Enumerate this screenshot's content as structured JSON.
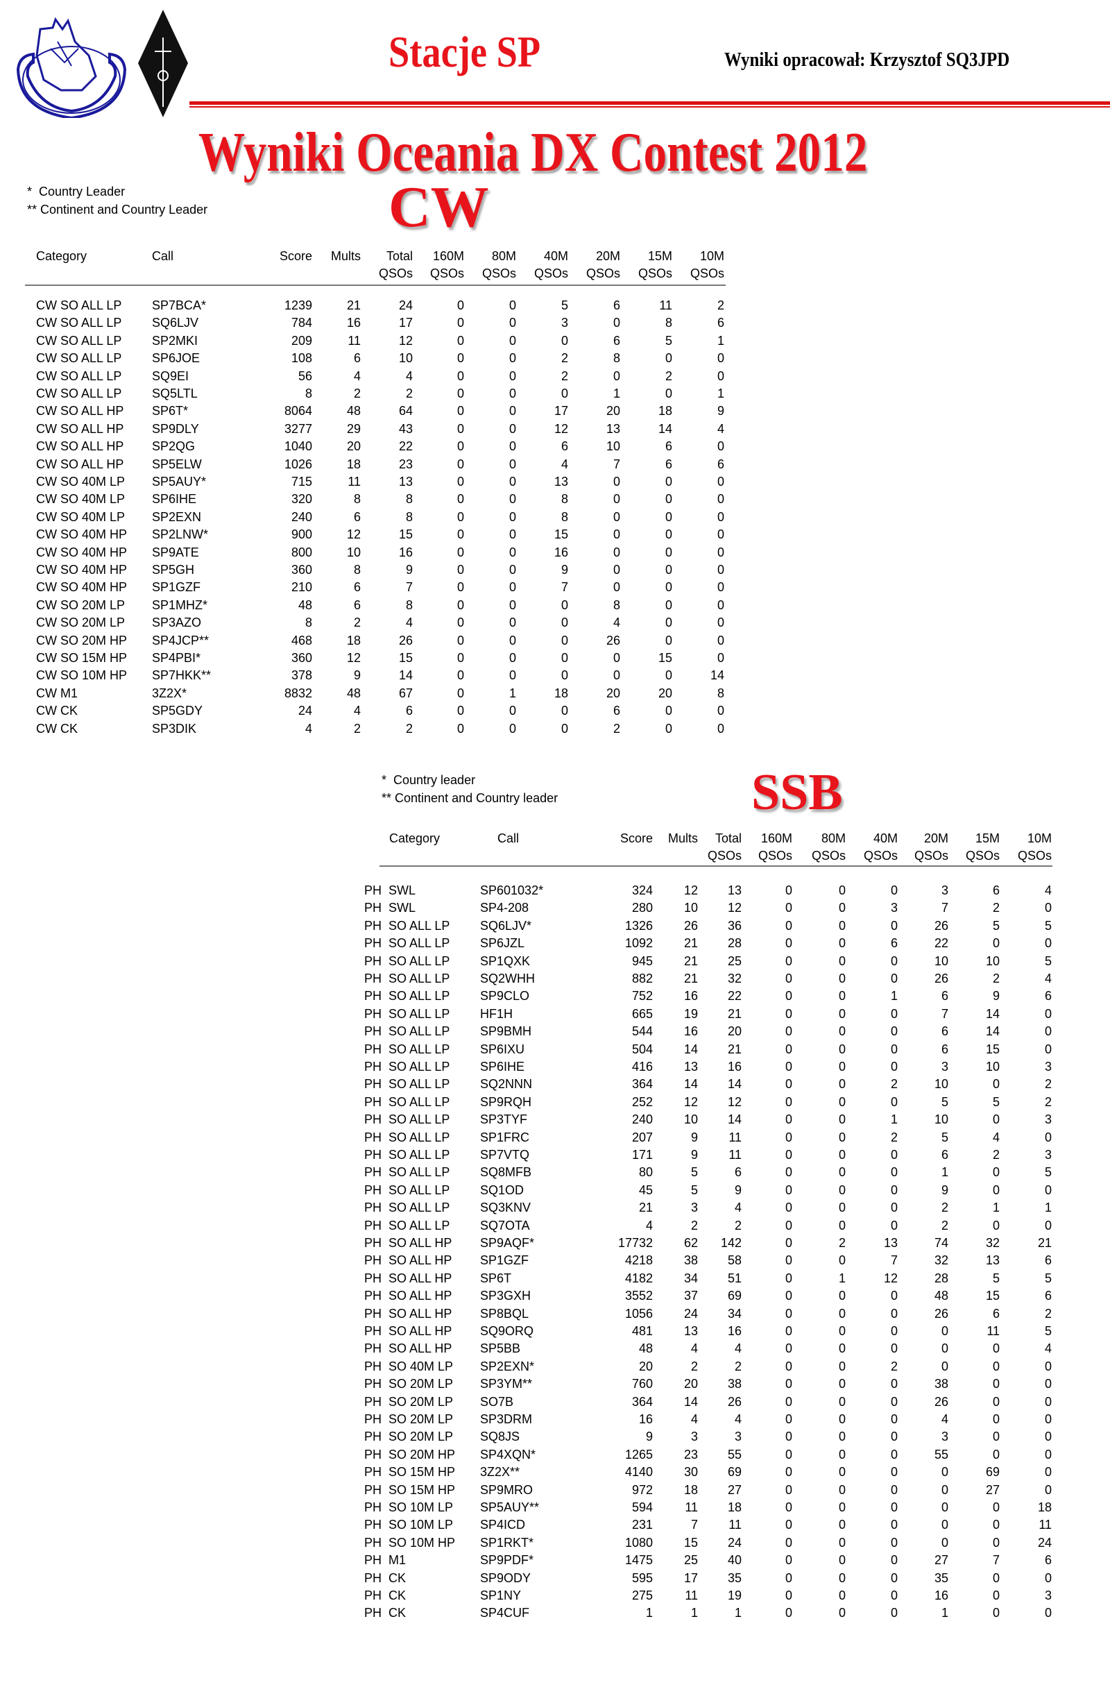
{
  "header": {
    "subtitle": "Stacje SP",
    "author": "Wyniki opracował: Krzysztof SQ3JPD",
    "title": "Wyniki Oceania DX Contest 2012",
    "colors": {
      "title_red": "#e8141b",
      "logo_blue": "#1a1a9c"
    }
  },
  "cw": {
    "heading": "CW",
    "legend": [
      "*  Country Leader",
      "** Continent and Country Leader"
    ],
    "columns": [
      {
        "top": "Category",
        "bottom": ""
      },
      {
        "top": "Call",
        "bottom": ""
      },
      {
        "top": "Score",
        "bottom": ""
      },
      {
        "top": "Mults",
        "bottom": ""
      },
      {
        "top": "Total",
        "bottom": "QSOs"
      },
      {
        "top": "160M",
        "bottom": "QSOs"
      },
      {
        "top": "80M",
        "bottom": "QSOs"
      },
      {
        "top": "40M",
        "bottom": "QSOs"
      },
      {
        "top": "20M",
        "bottom": "QSOs"
      },
      {
        "top": "15M",
        "bottom": "QSOs"
      },
      {
        "top": "10M",
        "bottom": "QSOs"
      }
    ],
    "rows": [
      [
        "CW SO ALL LP",
        "SP7BCA*",
        "1239",
        "21",
        "24",
        "0",
        "0",
        "5",
        "6",
        "11",
        "2"
      ],
      [
        "CW SO ALL LP",
        "SQ6LJV",
        "784",
        "16",
        "17",
        "0",
        "0",
        "3",
        "0",
        "8",
        "6"
      ],
      [
        "CW SO ALL LP",
        "SP2MKI",
        "209",
        "11",
        "12",
        "0",
        "0",
        "0",
        "6",
        "5",
        "1"
      ],
      [
        "CW SO ALL LP",
        "SP6JOE",
        "108",
        "6",
        "10",
        "0",
        "0",
        "2",
        "8",
        "0",
        "0"
      ],
      [
        "CW SO ALL LP",
        "SQ9EI",
        "56",
        "4",
        "4",
        "0",
        "0",
        "2",
        "0",
        "2",
        "0"
      ],
      [
        "CW SO ALL LP",
        "SQ5LTL",
        "8",
        "2",
        "2",
        "0",
        "0",
        "0",
        "1",
        "0",
        "1"
      ],
      [
        "CW SO ALL HP",
        "SP6T*",
        "8064",
        "48",
        "64",
        "0",
        "0",
        "17",
        "20",
        "18",
        "9"
      ],
      [
        "CW SO ALL HP",
        "SP9DLY",
        "3277",
        "29",
        "43",
        "0",
        "0",
        "12",
        "13",
        "14",
        "4"
      ],
      [
        "CW SO ALL HP",
        "SP2QG",
        "1040",
        "20",
        "22",
        "0",
        "0",
        "6",
        "10",
        "6",
        "0"
      ],
      [
        "CW SO ALL HP",
        "SP5ELW",
        "1026",
        "18",
        "23",
        "0",
        "0",
        "4",
        "7",
        "6",
        "6"
      ],
      [
        "CW SO 40M LP",
        "SP5AUY*",
        "715",
        "11",
        "13",
        "0",
        "0",
        "13",
        "0",
        "0",
        "0"
      ],
      [
        "CW SO 40M LP",
        "SP6IHE",
        "320",
        "8",
        "8",
        "0",
        "0",
        "8",
        "0",
        "0",
        "0"
      ],
      [
        "CW SO 40M LP",
        "SP2EXN",
        "240",
        "6",
        "8",
        "0",
        "0",
        "8",
        "0",
        "0",
        "0"
      ],
      [
        "CW SO 40M HP",
        "SP2LNW*",
        "900",
        "12",
        "15",
        "0",
        "0",
        "15",
        "0",
        "0",
        "0"
      ],
      [
        "CW SO 40M HP",
        "SP9ATE",
        "800",
        "10",
        "16",
        "0",
        "0",
        "16",
        "0",
        "0",
        "0"
      ],
      [
        "CW SO 40M HP",
        "SP5GH",
        "360",
        "8",
        "9",
        "0",
        "0",
        "9",
        "0",
        "0",
        "0"
      ],
      [
        "CW SO 40M HP",
        "SP1GZF",
        "210",
        "6",
        "7",
        "0",
        "0",
        "7",
        "0",
        "0",
        "0"
      ],
      [
        "CW SO 20M LP",
        "SP1MHZ*",
        "48",
        "6",
        "8",
        "0",
        "0",
        "0",
        "8",
        "0",
        "0"
      ],
      [
        "CW SO 20M LP",
        "SP3AZO",
        "8",
        "2",
        "4",
        "0",
        "0",
        "0",
        "4",
        "0",
        "0"
      ],
      [
        "CW SO 20M HP",
        "SP4JCP**",
        "468",
        "18",
        "26",
        "0",
        "0",
        "0",
        "26",
        "0",
        "0"
      ],
      [
        "CW SO 15M HP",
        "SP4PBI*",
        "360",
        "12",
        "15",
        "0",
        "0",
        "0",
        "0",
        "15",
        "0"
      ],
      [
        "CW SO 10M HP",
        "SP7HKK**",
        "378",
        "9",
        "14",
        "0",
        "0",
        "0",
        "0",
        "0",
        "14"
      ],
      [
        "CW M1",
        "3Z2X*",
        "8832",
        "48",
        "67",
        "0",
        "1",
        "18",
        "20",
        "20",
        "8"
      ],
      [
        "CW CK",
        "SP5GDY",
        "24",
        "4",
        "6",
        "0",
        "0",
        "0",
        "6",
        "0",
        "0"
      ],
      [
        "CW CK",
        "SP3DIK",
        "4",
        "2",
        "2",
        "0",
        "0",
        "0",
        "2",
        "0",
        "0"
      ]
    ]
  },
  "ssb": {
    "heading": "SSB",
    "legend": [
      "*  Country leader",
      "** Continent and Country leader"
    ],
    "columns": [
      {
        "top": "Category",
        "bottom": ""
      },
      {
        "top": "Call",
        "bottom": ""
      },
      {
        "top": "Score",
        "bottom": ""
      },
      {
        "top": "Mults",
        "bottom": ""
      },
      {
        "top": "Total",
        "bottom": "QSOs"
      },
      {
        "top": "160M",
        "bottom": "QSOs"
      },
      {
        "top": "80M",
        "bottom": "QSOs"
      },
      {
        "top": "40M",
        "bottom": "QSOs"
      },
      {
        "top": "20M",
        "bottom": "QSOs"
      },
      {
        "top": "15M",
        "bottom": "QSOs"
      },
      {
        "top": "10M",
        "bottom": "QSOs"
      }
    ],
    "rows": [
      [
        "PH  SWL",
        "SP601032*",
        "324",
        "12",
        "13",
        "0",
        "0",
        "0",
        "3",
        "6",
        "4"
      ],
      [
        "PH  SWL",
        "SP4-208",
        "280",
        "10",
        "12",
        "0",
        "0",
        "3",
        "7",
        "2",
        "0"
      ],
      [
        "PH  SO ALL LP",
        "SQ6LJV*",
        "1326",
        "26",
        "36",
        "0",
        "0",
        "0",
        "26",
        "5",
        "5"
      ],
      [
        "PH  SO ALL LP",
        "SP6JZL",
        "1092",
        "21",
        "28",
        "0",
        "0",
        "6",
        "22",
        "0",
        "0"
      ],
      [
        "PH  SO ALL LP",
        "SP1QXK",
        "945",
        "21",
        "25",
        "0",
        "0",
        "0",
        "10",
        "10",
        "5"
      ],
      [
        "PH  SO ALL LP",
        "SQ2WHH",
        "882",
        "21",
        "32",
        "0",
        "0",
        "0",
        "26",
        "2",
        "4"
      ],
      [
        "PH  SO ALL LP",
        "SP9CLO",
        "752",
        "16",
        "22",
        "0",
        "0",
        "1",
        "6",
        "9",
        "6"
      ],
      [
        "PH  SO ALL LP",
        "HF1H",
        "665",
        "19",
        "21",
        "0",
        "0",
        "0",
        "7",
        "14",
        "0"
      ],
      [
        "PH  SO ALL LP",
        "SP9BMH",
        "544",
        "16",
        "20",
        "0",
        "0",
        "0",
        "6",
        "14",
        "0"
      ],
      [
        "PH  SO ALL LP",
        "SP6IXU",
        "504",
        "14",
        "21",
        "0",
        "0",
        "0",
        "6",
        "15",
        "0"
      ],
      [
        "PH  SO ALL LP",
        "SP6IHE",
        "416",
        "13",
        "16",
        "0",
        "0",
        "0",
        "3",
        "10",
        "3"
      ],
      [
        "PH  SO ALL LP",
        "SQ2NNN",
        "364",
        "14",
        "14",
        "0",
        "0",
        "2",
        "10",
        "0",
        "2"
      ],
      [
        "PH  SO ALL LP",
        "SP9RQH",
        "252",
        "12",
        "12",
        "0",
        "0",
        "0",
        "5",
        "5",
        "2"
      ],
      [
        "PH  SO ALL LP",
        "SP3TYF",
        "240",
        "10",
        "14",
        "0",
        "0",
        "1",
        "10",
        "0",
        "3"
      ],
      [
        "PH  SO ALL LP",
        "SP1FRC",
        "207",
        "9",
        "11",
        "0",
        "0",
        "2",
        "5",
        "4",
        "0"
      ],
      [
        "PH  SO ALL LP",
        "SP7VTQ",
        "171",
        "9",
        "11",
        "0",
        "0",
        "0",
        "6",
        "2",
        "3"
      ],
      [
        "PH  SO ALL LP",
        "SQ8MFB",
        "80",
        "5",
        "6",
        "0",
        "0",
        "0",
        "1",
        "0",
        "5"
      ],
      [
        "PH  SO ALL LP",
        "SQ1OD",
        "45",
        "5",
        "9",
        "0",
        "0",
        "0",
        "9",
        "0",
        "0"
      ],
      [
        "PH  SO ALL LP",
        "SQ3KNV",
        "21",
        "3",
        "4",
        "0",
        "0",
        "0",
        "2",
        "1",
        "1"
      ],
      [
        "PH  SO ALL LP",
        "SQ7OTA",
        "4",
        "2",
        "2",
        "0",
        "0",
        "0",
        "2",
        "0",
        "0"
      ],
      [
        "PH  SO ALL HP",
        "SP9AQF*",
        "17732",
        "62",
        "142",
        "0",
        "2",
        "13",
        "74",
        "32",
        "21"
      ],
      [
        "PH  SO ALL HP",
        "SP1GZF",
        "4218",
        "38",
        "58",
        "0",
        "0",
        "7",
        "32",
        "13",
        "6"
      ],
      [
        "PH  SO ALL HP",
        "SP6T",
        "4182",
        "34",
        "51",
        "0",
        "1",
        "12",
        "28",
        "5",
        "5"
      ],
      [
        "PH  SO ALL HP",
        "SP3GXH",
        "3552",
        "37",
        "69",
        "0",
        "0",
        "0",
        "48",
        "15",
        "6"
      ],
      [
        "PH  SO ALL HP",
        "SP8BQL",
        "1056",
        "24",
        "34",
        "0",
        "0",
        "0",
        "26",
        "6",
        "2"
      ],
      [
        "PH  SO ALL HP",
        "SQ9ORQ",
        "481",
        "13",
        "16",
        "0",
        "0",
        "0",
        "0",
        "11",
        "5"
      ],
      [
        "PH  SO ALL HP",
        "SP5BB",
        "48",
        "4",
        "4",
        "0",
        "0",
        "0",
        "0",
        "0",
        "4"
      ],
      [
        "PH  SO 40M LP",
        "SP2EXN*",
        "20",
        "2",
        "2",
        "0",
        "0",
        "2",
        "0",
        "0",
        "0"
      ],
      [
        "PH  SO 20M LP",
        "SP3YM**",
        "760",
        "20",
        "38",
        "0",
        "0",
        "0",
        "38",
        "0",
        "0"
      ],
      [
        "PH  SO 20M LP",
        "SO7B",
        "364",
        "14",
        "26",
        "0",
        "0",
        "0",
        "26",
        "0",
        "0"
      ],
      [
        "PH  SO 20M LP",
        "SP3DRM",
        "16",
        "4",
        "4",
        "0",
        "0",
        "0",
        "4",
        "0",
        "0"
      ],
      [
        "PH  SO 20M LP",
        "SQ8JS",
        "9",
        "3",
        "3",
        "0",
        "0",
        "0",
        "3",
        "0",
        "0"
      ],
      [
        "PH  SO 20M HP",
        "SP4XQN*",
        "1265",
        "23",
        "55",
        "0",
        "0",
        "0",
        "55",
        "0",
        "0"
      ],
      [
        "PH  SO 15M HP",
        "3Z2X**",
        "4140",
        "30",
        "69",
        "0",
        "0",
        "0",
        "0",
        "69",
        "0"
      ],
      [
        "PH  SO 15M HP",
        "SP9MRO",
        "972",
        "18",
        "27",
        "0",
        "0",
        "0",
        "0",
        "27",
        "0"
      ],
      [
        "PH  SO 10M LP",
        "SP5AUY**",
        "594",
        "11",
        "18",
        "0",
        "0",
        "0",
        "0",
        "0",
        "18"
      ],
      [
        "PH  SO 10M LP",
        "SP4ICD",
        "231",
        "7",
        "11",
        "0",
        "0",
        "0",
        "0",
        "0",
        "11"
      ],
      [
        "PH  SO 10M HP",
        "SP1RKT*",
        "1080",
        "15",
        "24",
        "0",
        "0",
        "0",
        "0",
        "0",
        "24"
      ],
      [
        "PH  M1",
        "SP9PDF*",
        "1475",
        "25",
        "40",
        "0",
        "0",
        "0",
        "27",
        "7",
        "6"
      ],
      [
        "PH  CK",
        "SP9ODY",
        "595",
        "17",
        "35",
        "0",
        "0",
        "0",
        "35",
        "0",
        "0"
      ],
      [
        "PH  CK",
        "SP1NY",
        "275",
        "11",
        "19",
        "0",
        "0",
        "0",
        "16",
        "0",
        "3"
      ],
      [
        "PH  CK",
        "SP4CUF",
        "1",
        "1",
        "1",
        "0",
        "0",
        "0",
        "1",
        "0",
        "0"
      ]
    ]
  }
}
